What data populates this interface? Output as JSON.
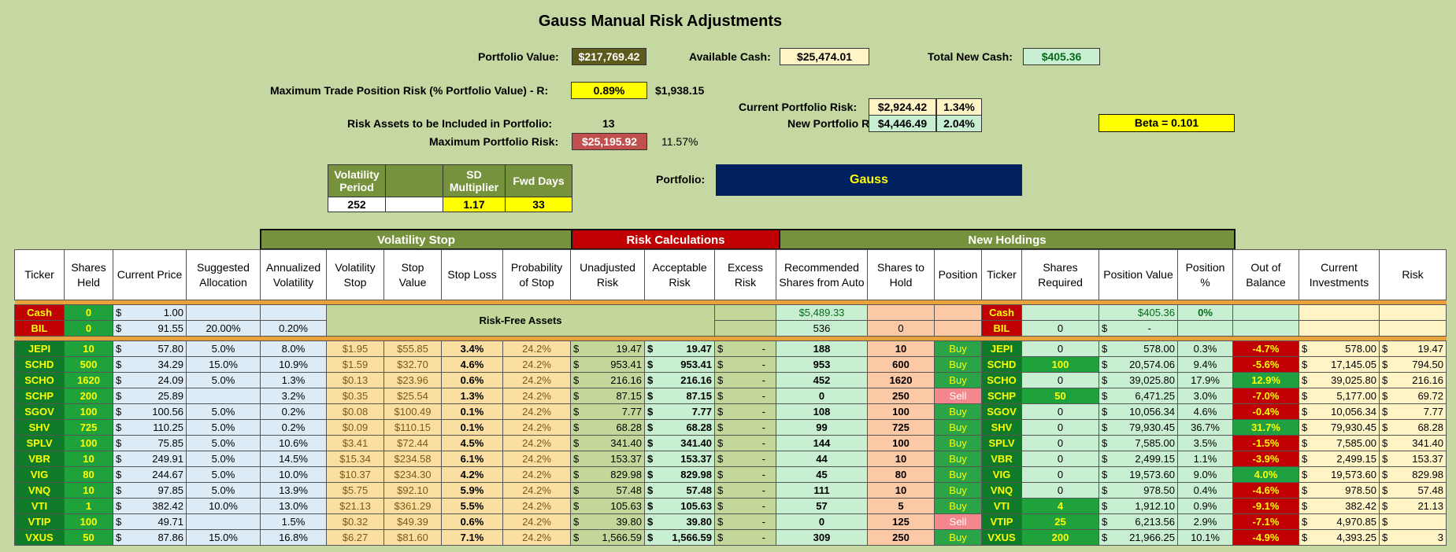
{
  "title": "Gauss Manual Risk Adjustments",
  "summary": {
    "portfolio_value_label": "Portfolio Value:",
    "portfolio_value": "$217,769.42",
    "available_cash_label": "Available Cash:",
    "available_cash": "$25,474.01",
    "total_new_cash_label": "Total New Cash:",
    "total_new_cash": "$405.36",
    "max_trade_risk_label": "Maximum Trade Position Risk (% Portfolio Value) - R:",
    "max_trade_risk_pct": "0.89%",
    "max_trade_risk_amt": "$1,938.15",
    "current_risk_label": "Current Portfolio Risk:",
    "current_risk_amt": "$2,924.42",
    "current_risk_pct": "1.34%",
    "new_risk_label": "New Portfolio Risk:",
    "new_risk_amt": "$4,446.49",
    "new_risk_pct": "2.04%",
    "beta": "Beta = 0.101",
    "risk_assets_label": "Risk Assets to be Included in Portfolio:",
    "risk_assets": "13",
    "max_portfolio_risk_label": "Maximum Portfolio Risk:",
    "max_portfolio_risk": "$25,195.92",
    "max_portfolio_risk_pct": "11.57%",
    "portfolio_label": "Portfolio:",
    "portfolio_name": "Gauss"
  },
  "vol_params": {
    "h1": "Volatility Period",
    "h2": "",
    "h3": "SD Multiplier",
    "h4": "Fwd Days",
    "v1": "252",
    "v2": "",
    "v3": "1.17",
    "v4": "33"
  },
  "sections": {
    "vol_stop": "Volatility Stop",
    "risk_calc": "Risk Calculations",
    "new_holdings": "New Holdings"
  },
  "headers": [
    "Ticker",
    "Shares Held",
    "Current Price",
    "Suggested Allocation",
    "Annualized Volatility",
    "Volatility Stop",
    "Stop Value",
    "Stop Loss",
    "Probability of Stop",
    "Unadjusted Risk",
    "Acceptable Risk",
    "Excess Risk",
    "Recommended Shares from Auto",
    "Shares to Hold",
    "Position",
    "Ticker",
    "Shares Required",
    "Position Value",
    "Position %",
    "Out of Balance",
    "Current Investments",
    "Risk"
  ],
  "cash_row": {
    "ticker": "Cash",
    "held": "0",
    "price": "1.00",
    "rec": "$5,489.33",
    "ticker2": "Cash",
    "pos_value": "$405.36",
    "pos_pct": "0%"
  },
  "bil_row": {
    "ticker": "BIL",
    "held": "0",
    "price": "91.55",
    "alloc": "20.00%",
    "vol": "0.20%",
    "rec": "536",
    "hold": "0",
    "ticker2": "BIL",
    "req": "0",
    "pos_value": "-"
  },
  "risk_free_label": "Risk-Free Assets",
  "rows": [
    {
      "t": "JEPI",
      "held": "10",
      "price": "57.80",
      "alloc": "5.0%",
      "vol": "8.0%",
      "vstop": "$1.95",
      "sval": "$55.85",
      "sloss": "3.4%",
      "prob": "24.2%",
      "unadj": "19.47",
      "acc": "19.47",
      "excess": "-",
      "rec": "188",
      "hold": "10",
      "pos": "Buy",
      "req": "0",
      "pval": "578.00",
      "ppct": "0.3%",
      "oob": "-4.7%",
      "cur": "578.00",
      "risk": "19.47"
    },
    {
      "t": "SCHD",
      "held": "500",
      "price": "34.29",
      "alloc": "15.0%",
      "vol": "10.9%",
      "vstop": "$1.59",
      "sval": "$32.70",
      "sloss": "4.6%",
      "prob": "24.2%",
      "unadj": "953.41",
      "acc": "953.41",
      "excess": "-",
      "rec": "953",
      "hold": "600",
      "pos": "Buy",
      "req": "100",
      "pval": "20,574.06",
      "ppct": "9.4%",
      "oob": "-5.6%",
      "cur": "17,145.05",
      "risk": "794.50"
    },
    {
      "t": "SCHO",
      "held": "1620",
      "price": "24.09",
      "alloc": "5.0%",
      "vol": "1.3%",
      "vstop": "$0.13",
      "sval": "$23.96",
      "sloss": "0.6%",
      "prob": "24.2%",
      "unadj": "216.16",
      "acc": "216.16",
      "excess": "-",
      "rec": "452",
      "hold": "1620",
      "pos": "Buy",
      "req": "0",
      "pval": "39,025.80",
      "ppct": "17.9%",
      "oob": "12.9%",
      "cur": "39,025.80",
      "risk": "216.16"
    },
    {
      "t": "SCHP",
      "held": "200",
      "price": "25.89",
      "alloc": "",
      "vol": "3.2%",
      "vstop": "$0.35",
      "sval": "$25.54",
      "sloss": "1.3%",
      "prob": "24.2%",
      "unadj": "87.15",
      "acc": "87.15",
      "excess": "-",
      "rec": "0",
      "hold": "250",
      "pos": "Sell",
      "req": "50",
      "pval": "6,471.25",
      "ppct": "3.0%",
      "oob": "-7.0%",
      "cur": "5,177.00",
      "risk": "69.72"
    },
    {
      "t": "SGOV",
      "held": "100",
      "price": "100.56",
      "alloc": "5.0%",
      "vol": "0.2%",
      "vstop": "$0.08",
      "sval": "$100.49",
      "sloss": "0.1%",
      "prob": "24.2%",
      "unadj": "7.77",
      "acc": "7.77",
      "excess": "-",
      "rec": "108",
      "hold": "100",
      "pos": "Buy",
      "req": "0",
      "pval": "10,056.34",
      "ppct": "4.6%",
      "oob": "-0.4%",
      "cur": "10,056.34",
      "risk": "7.77"
    },
    {
      "t": "SHV",
      "held": "725",
      "price": "110.25",
      "alloc": "5.0%",
      "vol": "0.2%",
      "vstop": "$0.09",
      "sval": "$110.15",
      "sloss": "0.1%",
      "prob": "24.2%",
      "unadj": "68.28",
      "acc": "68.28",
      "excess": "-",
      "rec": "99",
      "hold": "725",
      "pos": "Buy",
      "req": "0",
      "pval": "79,930.45",
      "ppct": "36.7%",
      "oob": "31.7%",
      "cur": "79,930.45",
      "risk": "68.28"
    },
    {
      "t": "SPLV",
      "held": "100",
      "price": "75.85",
      "alloc": "5.0%",
      "vol": "10.6%",
      "vstop": "$3.41",
      "sval": "$72.44",
      "sloss": "4.5%",
      "prob": "24.2%",
      "unadj": "341.40",
      "acc": "341.40",
      "excess": "-",
      "rec": "144",
      "hold": "100",
      "pos": "Buy",
      "req": "0",
      "pval": "7,585.00",
      "ppct": "3.5%",
      "oob": "-1.5%",
      "cur": "7,585.00",
      "risk": "341.40"
    },
    {
      "t": "VBR",
      "held": "10",
      "price": "249.91",
      "alloc": "5.0%",
      "vol": "14.5%",
      "vstop": "$15.34",
      "sval": "$234.58",
      "sloss": "6.1%",
      "prob": "24.2%",
      "unadj": "153.37",
      "acc": "153.37",
      "excess": "-",
      "rec": "44",
      "hold": "10",
      "pos": "Buy",
      "req": "0",
      "pval": "2,499.15",
      "ppct": "1.1%",
      "oob": "-3.9%",
      "cur": "2,499.15",
      "risk": "153.37"
    },
    {
      "t": "VIG",
      "held": "80",
      "price": "244.67",
      "alloc": "5.0%",
      "vol": "10.0%",
      "vstop": "$10.37",
      "sval": "$234.30",
      "sloss": "4.2%",
      "prob": "24.2%",
      "unadj": "829.98",
      "acc": "829.98",
      "excess": "-",
      "rec": "45",
      "hold": "80",
      "pos": "Buy",
      "req": "0",
      "pval": "19,573.60",
      "ppct": "9.0%",
      "oob": "4.0%",
      "cur": "19,573.60",
      "risk": "829.98"
    },
    {
      "t": "VNQ",
      "held": "10",
      "price": "97.85",
      "alloc": "5.0%",
      "vol": "13.9%",
      "vstop": "$5.75",
      "sval": "$92.10",
      "sloss": "5.9%",
      "prob": "24.2%",
      "unadj": "57.48",
      "acc": "57.48",
      "excess": "-",
      "rec": "111",
      "hold": "10",
      "pos": "Buy",
      "req": "0",
      "pval": "978.50",
      "ppct": "0.4%",
      "oob": "-4.6%",
      "cur": "978.50",
      "risk": "57.48"
    },
    {
      "t": "VTI",
      "held": "1",
      "price": "382.42",
      "alloc": "10.0%",
      "vol": "13.0%",
      "vstop": "$21.13",
      "sval": "$361.29",
      "sloss": "5.5%",
      "prob": "24.2%",
      "unadj": "105.63",
      "acc": "105.63",
      "excess": "-",
      "rec": "57",
      "hold": "5",
      "pos": "Buy",
      "req": "4",
      "pval": "1,912.10",
      "ppct": "0.9%",
      "oob": "-9.1%",
      "cur": "382.42",
      "risk": "21.13"
    },
    {
      "t": "VTIP",
      "held": "100",
      "price": "49.71",
      "alloc": "",
      "vol": "1.5%",
      "vstop": "$0.32",
      "sval": "$49.39",
      "sloss": "0.6%",
      "prob": "24.2%",
      "unadj": "39.80",
      "acc": "39.80",
      "excess": "-",
      "rec": "0",
      "hold": "125",
      "pos": "Sell",
      "req": "25",
      "pval": "6,213.56",
      "ppct": "2.9%",
      "oob": "-7.1%",
      "cur": "4,970.85",
      "risk": ""
    },
    {
      "t": "VXUS",
      "held": "50",
      "price": "87.86",
      "alloc": "15.0%",
      "vol": "16.8%",
      "vstop": "$6.27",
      "sval": "$81.60",
      "sloss": "7.1%",
      "prob": "24.2%",
      "unadj": "1,566.59",
      "acc": "1,566.59",
      "excess": "-",
      "rec": "309",
      "hold": "250",
      "pos": "Buy",
      "req": "200",
      "pval": "21,966.25",
      "ppct": "10.1%",
      "oob": "-4.9%",
      "cur": "4,393.25",
      "risk": "3"
    }
  ]
}
